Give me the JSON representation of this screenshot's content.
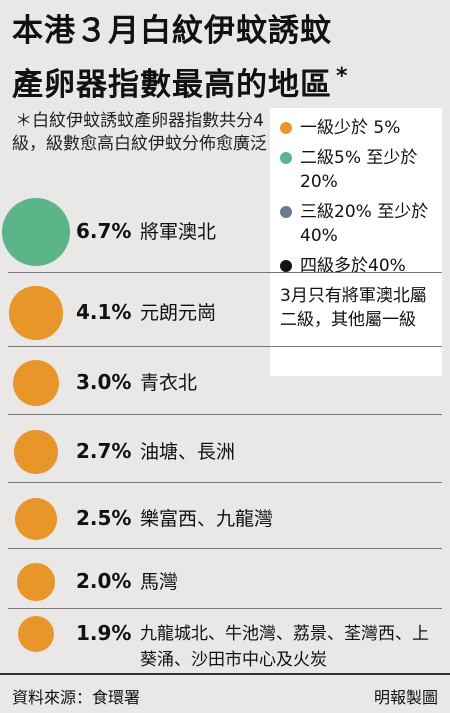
{
  "title_line1": "本港３月白紋伊蚊誘蚊",
  "title_line2": "產卵器指數最高的地區",
  "title_star": "*",
  "note": "＊白紋伊蚊誘蚊產卵器指數共分4級，級數愈高白紋伊蚊分佈愈廣泛",
  "legend": [
    {
      "label": "一級少於 5%",
      "color": "#e8962a"
    },
    {
      "label": "二級5% 至少於20%",
      "color": "#5cb489"
    },
    {
      "label": "三級20% 至少於40%",
      "color": "#6b7b92"
    },
    {
      "label": "四級多於40%",
      "color": "#111111"
    }
  ],
  "legend_note": "3月只有將軍澳北屬二級，其他屬一級",
  "chart_data": {
    "type": "bubble",
    "title": "本港３月白紋伊蚊誘蚊產卵器指數最高的地區",
    "rows": [
      {
        "value": 6.7,
        "label": "6.7%",
        "area": "將軍澳北",
        "level": 2
      },
      {
        "value": 4.1,
        "label": "4.1%",
        "area": "元朗元崗",
        "level": 1
      },
      {
        "value": 3.0,
        "label": "3.0%",
        "area": "青衣北",
        "level": 1
      },
      {
        "value": 2.7,
        "label": "2.7%",
        "area": "油塘、長洲",
        "level": 1
      },
      {
        "value": 2.5,
        "label": "2.5%",
        "area": "樂富西、九龍灣",
        "level": 1
      },
      {
        "value": 2.0,
        "label": "2.0%",
        "area": "馬灣",
        "level": 1
      },
      {
        "value": 1.9,
        "label": "1.9%",
        "area": "九龍城北、牛池灣、荔景、荃灣西、上葵涌、沙田市中心及火炭",
        "level": 1
      }
    ],
    "level_colors": {
      "1": "#e8962a",
      "2": "#5cb489",
      "3": "#6b7b92",
      "4": "#111111"
    }
  },
  "footer": {
    "source": "資料來源：食環署",
    "credit": "明報製圖"
  }
}
